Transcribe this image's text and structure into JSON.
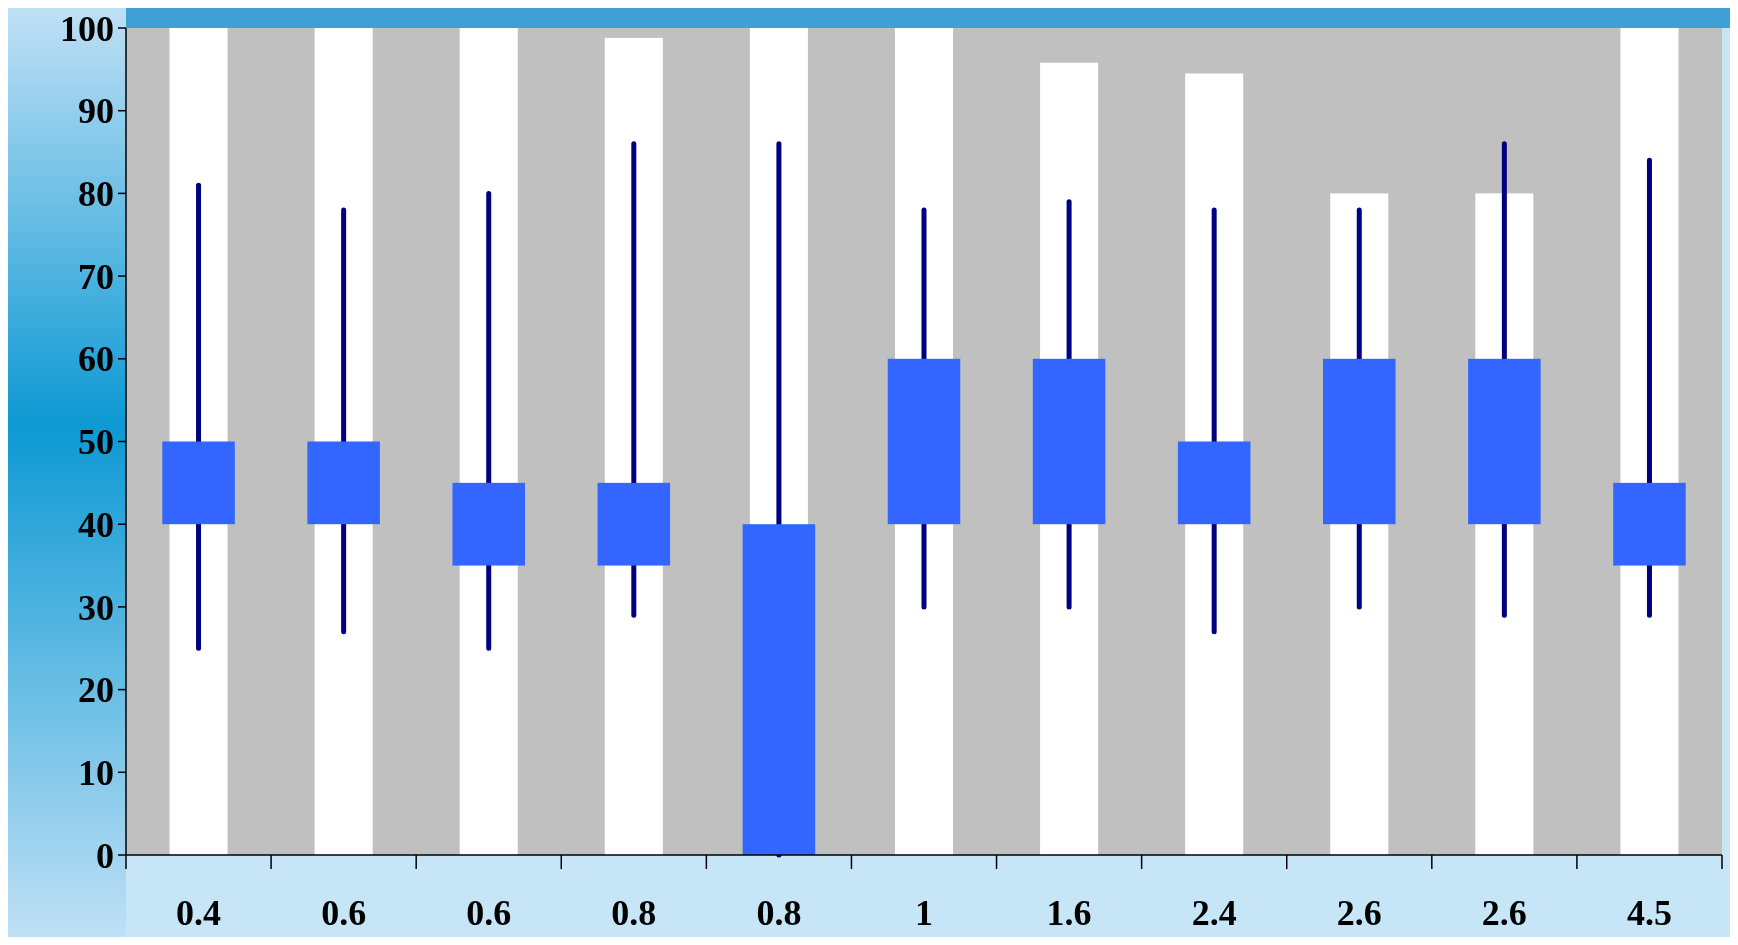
{
  "chart_data": {
    "type": "candlestick",
    "categories": [
      "0.4",
      "0.6",
      "0.6",
      "0.8",
      "0.8",
      "1",
      "1.6",
      "2.4",
      "2.6",
      "2.6",
      "4.5"
    ],
    "ohlc": [
      [
        40,
        81,
        25,
        50
      ],
      [
        40,
        78,
        27,
        50
      ],
      [
        35,
        80,
        25,
        45
      ],
      [
        35,
        86,
        29,
        45
      ],
      [
        0,
        86,
        0,
        40
      ],
      [
        40,
        78,
        30,
        60
      ],
      [
        40,
        79,
        30,
        60
      ],
      [
        40,
        78,
        27,
        50
      ],
      [
        40,
        78,
        30,
        60
      ],
      [
        40,
        86,
        29,
        60
      ],
      [
        35,
        84,
        29,
        45
      ]
    ],
    "color": "#3366ff",
    "series": [
      {
        "type": "bar",
        "color": "#ffffff",
        "values": [
          100,
          100,
          100,
          98.8,
          100,
          100,
          95.8,
          94.5,
          80,
          80,
          100
        ]
      }
    ],
    "ylim": [
      0,
      100
    ],
    "yticks": [
      0,
      10,
      20,
      30,
      40,
      50,
      60,
      70,
      80,
      90,
      100
    ],
    "grid": false
  }
}
